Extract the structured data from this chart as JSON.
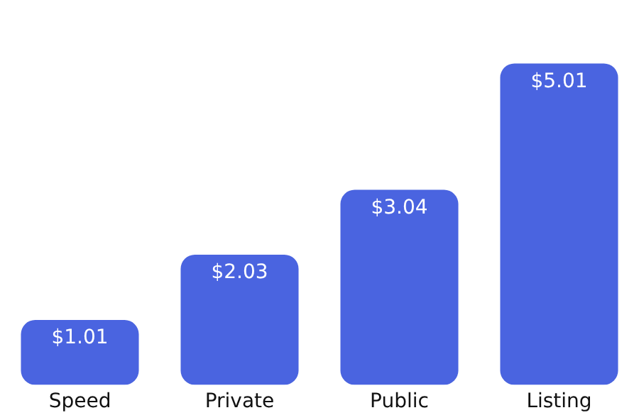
{
  "chart_data": {
    "type": "bar",
    "categories": [
      "Speed",
      "Private",
      "Public",
      "Listing"
    ],
    "values": [
      1.01,
      2.03,
      3.04,
      5.01
    ],
    "value_labels": [
      "$1.01",
      "$2.03",
      "$3.04",
      "$5.01"
    ],
    "color": "#4a64e0",
    "grid": false,
    "legend": false
  }
}
